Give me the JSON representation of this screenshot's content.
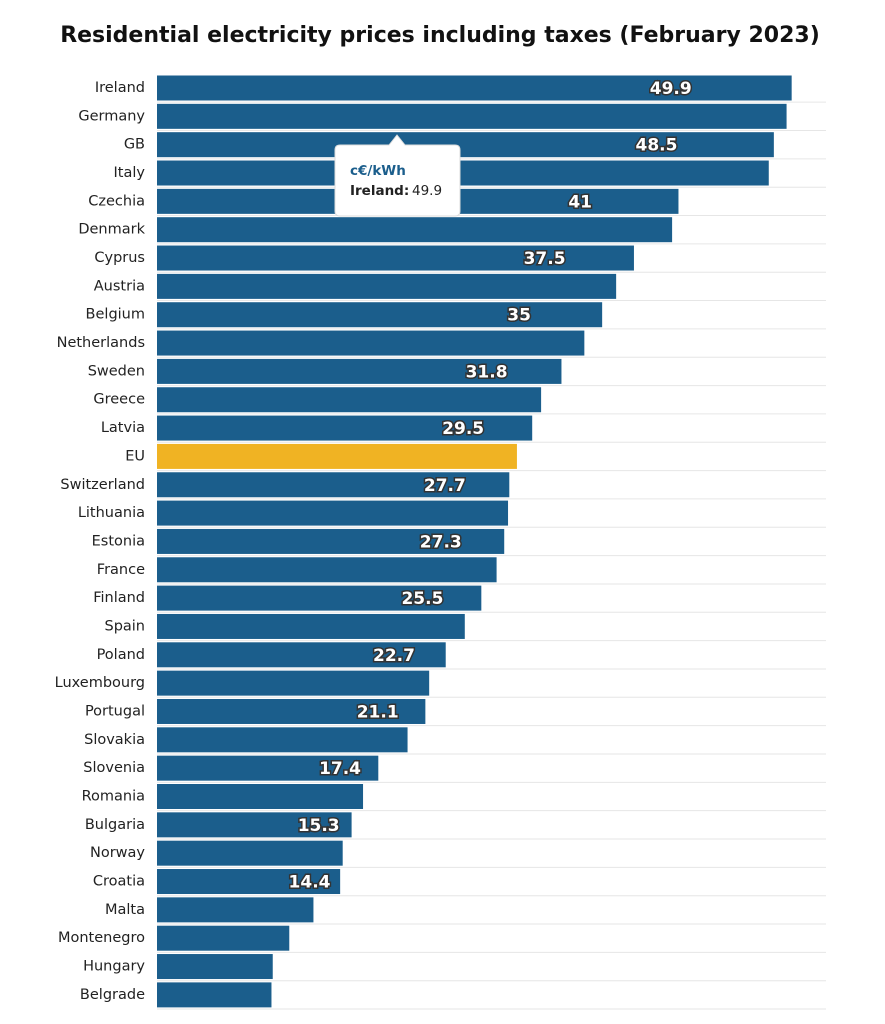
{
  "chart_data": {
    "type": "barh",
    "title": "Residential electricity prices including taxes (February 2023)",
    "categories": [
      "Ireland",
      "Germany",
      "GB",
      "Italy",
      "Czechia",
      "Denmark",
      "Cyprus",
      "Austria",
      "Belgium",
      "Netherlands",
      "Sweden",
      "Greece",
      "Latvia",
      "EU",
      "Switzerland",
      "Lithuania",
      "Estonia",
      "France",
      "Finland",
      "Spain",
      "Poland",
      "Luxembourg",
      "Portugal",
      "Slovakia",
      "Slovenia",
      "Romania",
      "Bulgaria",
      "Norway",
      "Croatia",
      "Malta",
      "Montenegro",
      "Hungary",
      "Belgrade"
    ],
    "values": [
      49.9,
      49.5,
      48.5,
      48.1,
      41,
      40.5,
      37.5,
      36.1,
      35,
      33.6,
      31.8,
      30.2,
      29.5,
      28.3,
      27.7,
      27.6,
      27.3,
      26.7,
      25.5,
      24.2,
      22.7,
      21.4,
      21.1,
      19.7,
      17.4,
      16.2,
      15.3,
      14.6,
      14.4,
      12.3,
      10.4,
      9.1,
      9.0
    ],
    "value_labels": [
      "49.9",
      null,
      "48.5",
      null,
      "41",
      null,
      "37.5",
      null,
      "35",
      null,
      "31.8",
      null,
      "29.5",
      null,
      "27.7",
      null,
      "27.3",
      null,
      "25.5",
      null,
      "22.7",
      null,
      "21.1",
      null,
      "17.4",
      null,
      "15.3",
      null,
      "14.4",
      null,
      null,
      null,
      null
    ],
    "colors": [
      "#1b5e8c",
      "#1b5e8c",
      "#1b5e8c",
      "#1b5e8c",
      "#1b5e8c",
      "#1b5e8c",
      "#1b5e8c",
      "#1b5e8c",
      "#1b5e8c",
      "#1b5e8c",
      "#1b5e8c",
      "#1b5e8c",
      "#1b5e8c",
      "#f0b323",
      "#1b5e8c",
      "#1b5e8c",
      "#1b5e8c",
      "#1b5e8c",
      "#1b5e8c",
      "#1b5e8c",
      "#1b5e8c",
      "#1b5e8c",
      "#1b5e8c",
      "#1b5e8c",
      "#1b5e8c",
      "#1b5e8c",
      "#1b5e8c",
      "#1b5e8c",
      "#1b5e8c",
      "#1b5e8c",
      "#1b5e8c",
      "#1b5e8c",
      "#1b5e8c"
    ],
    "xlim": [
      0,
      52.6
    ],
    "grid": true,
    "tooltip": {
      "unit": "c€/kWh",
      "category": "Ireland:",
      "value": 49.9
    }
  }
}
